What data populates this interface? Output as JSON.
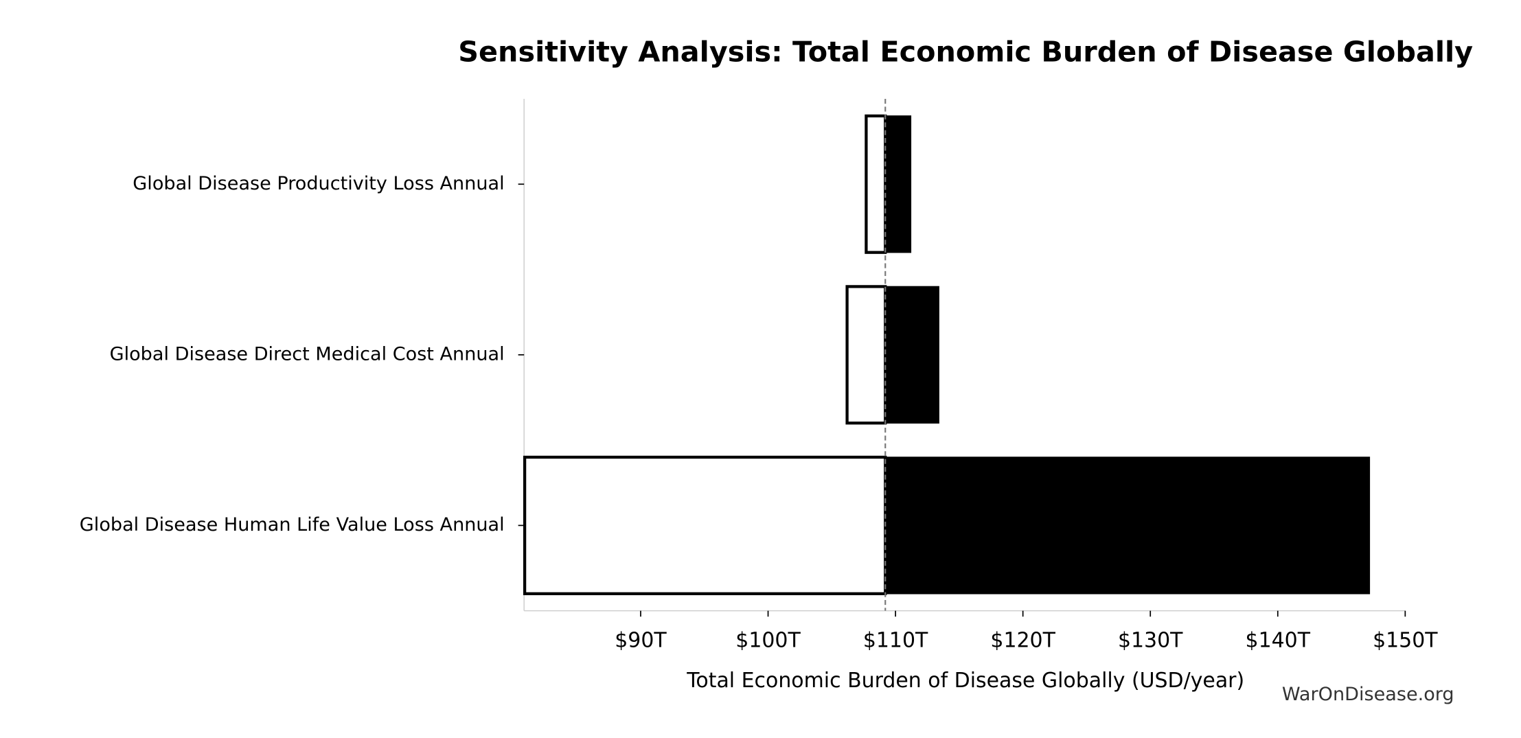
{
  "chart_data": {
    "type": "tornado",
    "title": "Sensitivity Analysis: Total Economic Burden of Disease Globally",
    "x_label": "Total Economic Burden of Disease Globally (USD/year)",
    "watermark": "WarOnDisease.org",
    "categories": [
      "Global Disease Productivity Loss Annual",
      "Global Disease Direct Medical Cost Annual",
      "Global Disease Human Life Value Loss Annual"
    ],
    "baseline": 109.2,
    "low_values": [
      107.7,
      106.2,
      80.9
    ],
    "high_values": [
      111.2,
      113.4,
      147.2
    ],
    "low_color": "#ffffff",
    "high_color": "#000000",
    "xlim": [
      80.85,
      150
    ],
    "xticks": [
      {
        "value": 90,
        "label": "$90T"
      },
      {
        "value": 100,
        "label": "$100T"
      },
      {
        "value": 110,
        "label": "$110T"
      },
      {
        "value": 120,
        "label": "$120T"
      },
      {
        "value": 130,
        "label": "$130T"
      },
      {
        "value": 140,
        "label": "$140T"
      },
      {
        "value": 150,
        "label": "$150T"
      }
    ]
  }
}
